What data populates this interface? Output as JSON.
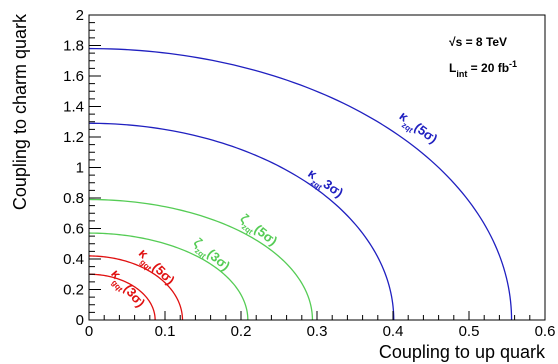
{
  "chart_data": {
    "type": "line",
    "title": "",
    "xlabel": "Coupling to up quark",
    "ylabel": "Coupling to charm quark",
    "xlim": [
      0,
      0.6
    ],
    "ylim": [
      0,
      2
    ],
    "x_ticks": [
      {
        "value": 0,
        "label": "0"
      },
      {
        "value": 0.1,
        "label": "0.1"
      },
      {
        "value": 0.2,
        "label": "0.2"
      },
      {
        "value": 0.3,
        "label": "0.3"
      },
      {
        "value": 0.4,
        "label": "0.4"
      },
      {
        "value": 0.5,
        "label": "0.5"
      },
      {
        "value": 0.6,
        "label": "0.6"
      }
    ],
    "y_ticks": [
      {
        "value": 0,
        "label": "0"
      },
      {
        "value": 0.2,
        "label": "0.2"
      },
      {
        "value": 0.4,
        "label": "0.4"
      },
      {
        "value": 0.6,
        "label": "0.6"
      },
      {
        "value": 0.8,
        "label": "0.8"
      },
      {
        "value": 1,
        "label": "1"
      },
      {
        "value": 1.2,
        "label": "1.2"
      },
      {
        "value": 1.4,
        "label": "1.4"
      },
      {
        "value": 1.6,
        "label": "1.6"
      },
      {
        "value": 1.8,
        "label": "1.8"
      },
      {
        "value": 2,
        "label": "2"
      }
    ],
    "grid": false,
    "info_text": {
      "energy": "√s = 8 TeV",
      "lumi_prefix": "L",
      "lumi_sub": "int",
      "lumi_value": " = 20 fb",
      "lumi_sup": "-1"
    },
    "series": [
      {
        "label_main": "κ",
        "label_sub": "gqt",
        "label_sig": "(3σ)",
        "color": "#e01010",
        "a": 0.087,
        "b": 0.3,
        "label_x": 0.047,
        "label_y": 0.19,
        "label_rot": -50
      },
      {
        "label_main": "κ",
        "label_sub": "gqt",
        "label_sig": "(5σ)",
        "color": "#e01010",
        "a": 0.123,
        "b": 0.42,
        "label_x": 0.085,
        "label_y": 0.33,
        "label_rot": -45
      },
      {
        "label_main": "ζ",
        "label_sub": "zqt",
        "label_sig": "(3σ)",
        "color": "#55cc55",
        "a": 0.209,
        "b": 0.57,
        "label_x": 0.158,
        "label_y": 0.41,
        "label_rot": -40
      },
      {
        "label_main": "ζ",
        "label_sub": "zqt",
        "label_sig": "(5σ)",
        "color": "#55cc55",
        "a": 0.294,
        "b": 0.79,
        "label_x": 0.22,
        "label_y": 0.57,
        "label_rot": -38
      },
      {
        "label_main": "κ",
        "label_sub": "zqt",
        "label_sig": "3σ)",
        "color": "#2020c0",
        "a": 0.401,
        "b": 1.29,
        "label_x": 0.308,
        "label_y": 0.875,
        "label_rot": -35
      },
      {
        "label_main": "κ",
        "label_sub": "zqt",
        "label_sig": "(5σ)",
        "color": "#2020c0",
        "a": 0.556,
        "b": 1.78,
        "label_x": 0.43,
        "label_y": 1.24,
        "label_rot": -37
      }
    ]
  }
}
